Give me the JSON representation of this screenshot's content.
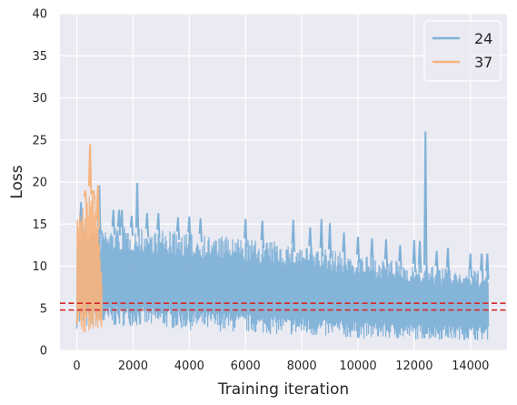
{
  "chart_data": {
    "type": "line",
    "xlabel": "Training iteration",
    "ylabel": "Loss",
    "xlim": [
      -600,
      15300
    ],
    "ylim": [
      0,
      40
    ],
    "xticks": [
      0,
      2000,
      4000,
      6000,
      8000,
      10000,
      12000,
      14000
    ],
    "yticks": [
      0,
      5,
      10,
      15,
      20,
      25,
      30,
      35,
      40
    ],
    "grid": true,
    "legend": "top-right",
    "series": [
      {
        "name": "24",
        "color": "#7fb1d7",
        "x_range": [
          0,
          14650
        ],
        "envelope_upper": [
          [
            0,
            15
          ],
          [
            500,
            14.8
          ],
          [
            2000,
            14.6
          ],
          [
            4000,
            14.0
          ],
          [
            6000,
            13.3
          ],
          [
            8000,
            12.6
          ],
          [
            10000,
            11.4
          ],
          [
            12000,
            10.3
          ],
          [
            14000,
            9.6
          ],
          [
            14650,
            9.4
          ]
        ],
        "envelope_lower": [
          [
            0,
            2.6
          ],
          [
            2000,
            2.9
          ],
          [
            4000,
            2.4
          ],
          [
            6000,
            2.1
          ],
          [
            8000,
            1.7
          ],
          [
            10000,
            1.4
          ],
          [
            12000,
            1.3
          ],
          [
            14650,
            1.2
          ]
        ],
        "spikes": [
          [
            150,
            17.6
          ],
          [
            800,
            19.6
          ],
          [
            1300,
            16.7
          ],
          [
            1500,
            16.7
          ],
          [
            1600,
            16.7
          ],
          [
            1950,
            16.0
          ],
          [
            2150,
            19.9
          ],
          [
            2500,
            16.3
          ],
          [
            2900,
            16.3
          ],
          [
            3600,
            15.8
          ],
          [
            4000,
            15.9
          ],
          [
            4400,
            15.7
          ],
          [
            6000,
            15.6
          ],
          [
            6600,
            15.4
          ],
          [
            7700,
            15.5
          ],
          [
            8300,
            14.6
          ],
          [
            8700,
            15.6
          ],
          [
            9000,
            15.1
          ],
          [
            9500,
            14.0
          ],
          [
            10000,
            13.5
          ],
          [
            10500,
            13.3
          ],
          [
            11000,
            13.2
          ],
          [
            11500,
            12.5
          ],
          [
            12000,
            13.1
          ],
          [
            12200,
            13.0
          ],
          [
            12400,
            26.0
          ],
          [
            12800,
            11.8
          ],
          [
            13200,
            12.2
          ],
          [
            14000,
            11.5
          ],
          [
            14400,
            11.5
          ],
          [
            14600,
            11.5
          ]
        ]
      },
      {
        "name": "37",
        "color": "#f6b27c",
        "x_range": [
          0,
          900
        ],
        "envelope_upper": [
          [
            0,
            15.4
          ],
          [
            200,
            17.0
          ],
          [
            400,
            19.6
          ],
          [
            550,
            19.4
          ],
          [
            700,
            18.0
          ],
          [
            900,
            8.0
          ]
        ],
        "envelope_lower": [
          [
            0,
            2.6
          ],
          [
            300,
            2.0
          ],
          [
            600,
            2.4
          ],
          [
            900,
            2.6
          ]
        ],
        "spikes": [
          [
            300,
            19.0
          ],
          [
            470,
            24.5
          ],
          [
            600,
            18.9
          ],
          [
            750,
            19.6
          ]
        ]
      }
    ],
    "hlines": [
      {
        "y": 5.6,
        "color": "#d62728",
        "style": "dashed"
      },
      {
        "y": 4.8,
        "color": "#d62728",
        "style": "dashed"
      }
    ]
  }
}
